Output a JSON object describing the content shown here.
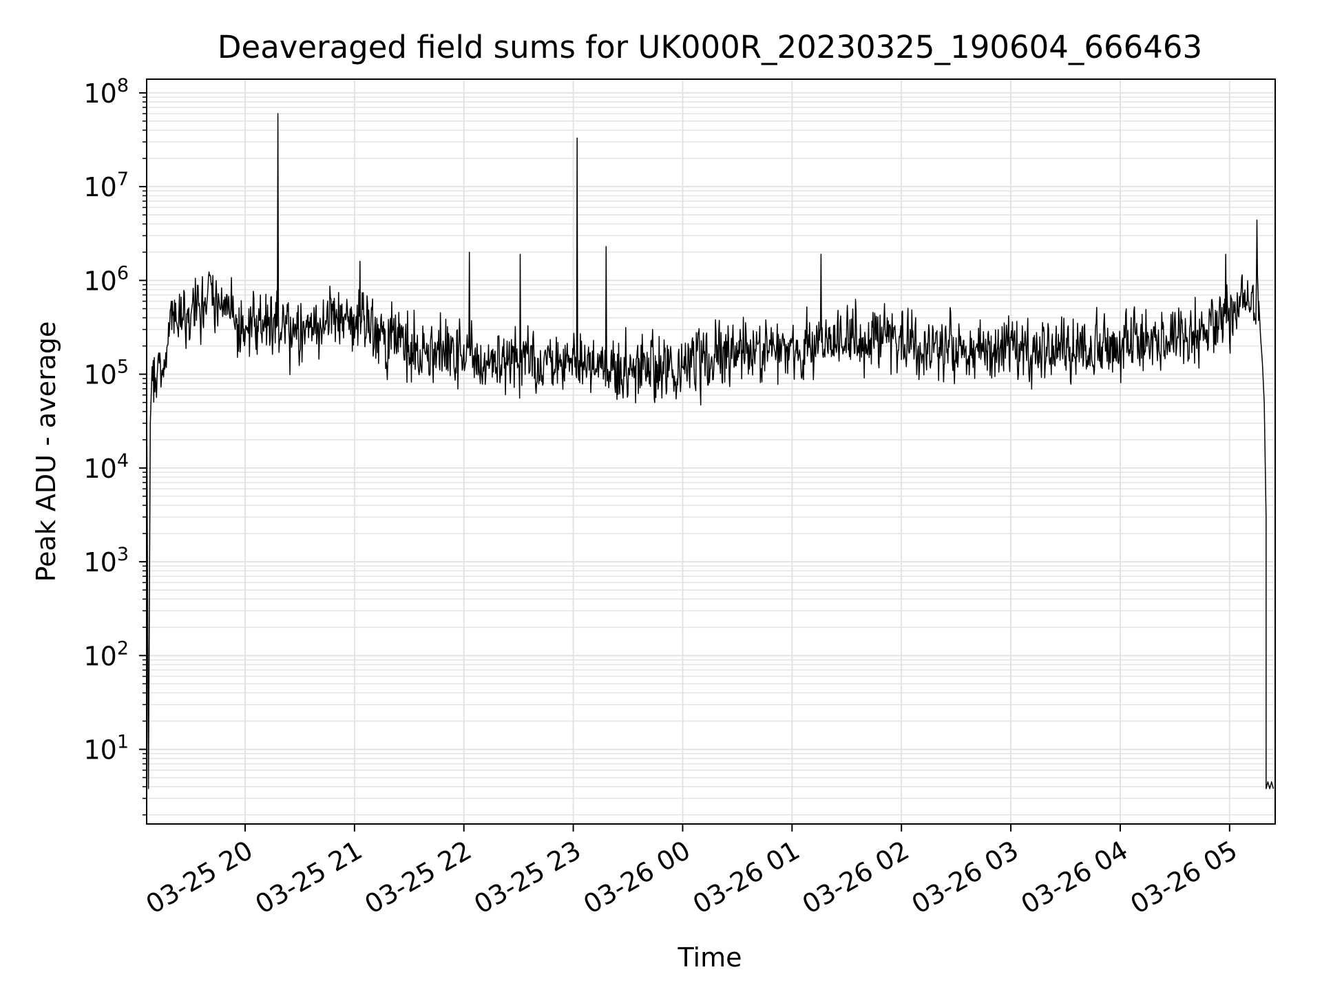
{
  "chart_data": {
    "type": "line",
    "title": "Deaveraged field sums for UK000R_20230325_190604_666463",
    "xlabel": "Time",
    "ylabel": "Peak ADU - average",
    "yscale": "log",
    "ylim": [
      1.6,
      140000000
    ],
    "xlim": [
      "2023-03-25 19:06",
      "2023-03-26 05:25"
    ],
    "x_ticks": [
      {
        "t": "2023-03-25 20:00",
        "label": "03-25 20"
      },
      {
        "t": "2023-03-25 21:00",
        "label": "03-25 21"
      },
      {
        "t": "2023-03-25 22:00",
        "label": "03-25 22"
      },
      {
        "t": "2023-03-25 23:00",
        "label": "03-25 23"
      },
      {
        "t": "2023-03-26 00:00",
        "label": "03-26 00"
      },
      {
        "t": "2023-03-26 01:00",
        "label": "03-26 01"
      },
      {
        "t": "2023-03-26 02:00",
        "label": "03-26 02"
      },
      {
        "t": "2023-03-26 03:00",
        "label": "03-26 03"
      },
      {
        "t": "2023-03-26 04:00",
        "label": "03-26 04"
      },
      {
        "t": "2023-03-26 05:00",
        "label": "03-26 05"
      }
    ],
    "y_ticks": [
      {
        "value": 10,
        "base": "10",
        "exp": "1"
      },
      {
        "value": 100,
        "base": "10",
        "exp": "2"
      },
      {
        "value": 1000,
        "base": "10",
        "exp": "3"
      },
      {
        "value": 10000,
        "base": "10",
        "exp": "4"
      },
      {
        "value": 100000,
        "base": "10",
        "exp": "5"
      },
      {
        "value": 1000000,
        "base": "10",
        "exp": "6"
      },
      {
        "value": 10000000,
        "base": "10",
        "exp": "7"
      },
      {
        "value": 100000000,
        "base": "10",
        "exp": "8"
      }
    ],
    "grid": true,
    "line_color": "#000000",
    "grid_color": "#e3e3e3",
    "series": [
      {
        "baseline": [
          {
            "t": "2023-03-25 19:10",
            "v": 70000
          },
          {
            "t": "2023-03-25 19:15",
            "v": 100000
          },
          {
            "t": "2023-03-25 19:20",
            "v": 350000
          },
          {
            "t": "2023-03-25 19:30",
            "v": 500000
          },
          {
            "t": "2023-03-25 19:40",
            "v": 700000
          },
          {
            "t": "2023-03-25 19:50",
            "v": 500000
          },
          {
            "t": "2023-03-25 20:00",
            "v": 300000
          },
          {
            "t": "2023-03-25 20:15",
            "v": 400000
          },
          {
            "t": "2023-03-25 20:30",
            "v": 250000
          },
          {
            "t": "2023-03-25 20:45",
            "v": 450000
          },
          {
            "t": "2023-03-25 21:00",
            "v": 350000
          },
          {
            "t": "2023-03-25 21:15",
            "v": 250000
          },
          {
            "t": "2023-03-25 21:30",
            "v": 200000
          },
          {
            "t": "2023-03-25 22:00",
            "v": 160000
          },
          {
            "t": "2023-03-25 22:30",
            "v": 140000
          },
          {
            "t": "2023-03-25 23:00",
            "v": 130000
          },
          {
            "t": "2023-03-25 23:30",
            "v": 120000
          },
          {
            "t": "2023-03-26 00:00",
            "v": 120000
          },
          {
            "t": "2023-03-26 00:30",
            "v": 180000
          },
          {
            "t": "2023-03-26 01:00",
            "v": 170000
          },
          {
            "t": "2023-03-26 01:30",
            "v": 250000
          },
          {
            "t": "2023-03-26 02:00",
            "v": 230000
          },
          {
            "t": "2023-03-26 02:30",
            "v": 180000
          },
          {
            "t": "2023-03-26 03:00",
            "v": 180000
          },
          {
            "t": "2023-03-26 03:30",
            "v": 170000
          },
          {
            "t": "2023-03-26 04:00",
            "v": 180000
          },
          {
            "t": "2023-03-26 04:30",
            "v": 250000
          },
          {
            "t": "2023-03-26 04:50",
            "v": 300000
          },
          {
            "t": "2023-03-26 05:00",
            "v": 500000
          },
          {
            "t": "2023-03-26 05:15",
            "v": 700000
          }
        ],
        "noise_decades": 0.55,
        "sample_minutes": 0.3,
        "points": [
          {
            "t": "2023-03-25 19:06",
            "v": 1.6
          },
          {
            "t": "2023-03-25 19:06",
            "v": 70000
          },
          {
            "t": "2023-03-25 19:07",
            "v": 3.8
          },
          {
            "t": "2023-03-25 19:08",
            "v": 30000
          },
          {
            "t": "2023-03-25 19:09",
            "v": 120000
          }
        ],
        "spikes": [
          {
            "t": "2023-03-25 20:18",
            "v": 60000000
          },
          {
            "t": "2023-03-25 23:02",
            "v": 33000000
          },
          {
            "t": "2023-03-25 23:18",
            "v": 2300000
          },
          {
            "t": "2023-03-25 22:03",
            "v": 2000000
          },
          {
            "t": "2023-03-25 22:31",
            "v": 1900000
          },
          {
            "t": "2023-03-26 01:16",
            "v": 1900000
          },
          {
            "t": "2023-03-26 05:15",
            "v": 4400000
          },
          {
            "t": "2023-03-26 04:58",
            "v": 1900000
          },
          {
            "t": "2023-03-25 21:03",
            "v": 1600000
          }
        ],
        "tail": [
          {
            "t": "2023-03-26 05:16",
            "v": 600000
          },
          {
            "t": "2023-03-26 05:17",
            "v": 250000
          },
          {
            "t": "2023-03-26 05:18",
            "v": 130000
          },
          {
            "t": "2023-03-26 05:19",
            "v": 50000
          },
          {
            "t": "2023-03-26 05:20",
            "v": 3000
          },
          {
            "t": "2023-03-26 05:20",
            "v": 3.8
          },
          {
            "t": "2023-03-26 05:21",
            "v": 4.5
          },
          {
            "t": "2023-03-26 05:22",
            "v": 3.8
          },
          {
            "t": "2023-03-26 05:23",
            "v": 4.5
          },
          {
            "t": "2023-03-26 05:24",
            "v": 3.8
          }
        ]
      }
    ]
  }
}
